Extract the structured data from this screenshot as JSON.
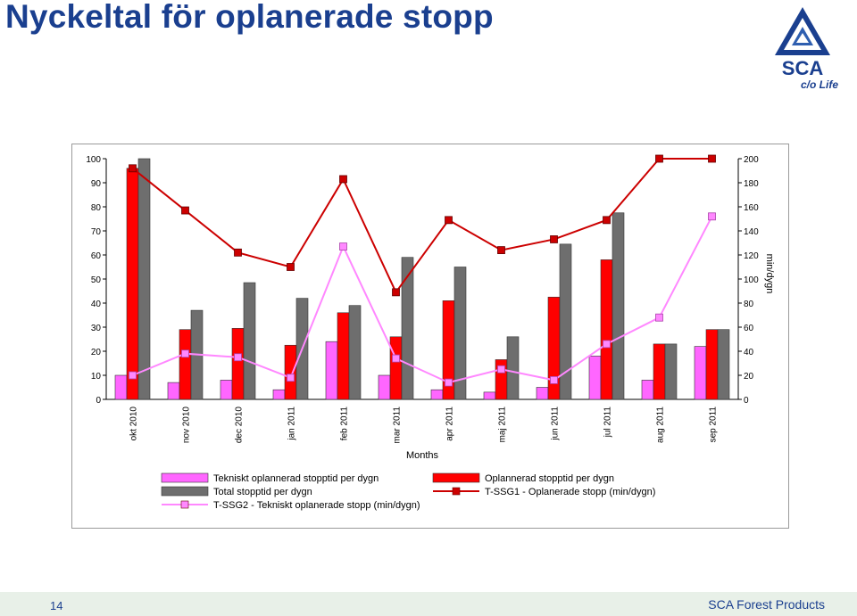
{
  "page": {
    "title": "Nyckeltal för oplanerade stopp",
    "logo_text": "SCA",
    "logo_sub": "c/o Life",
    "page_number": "14",
    "footer": "SCA Forest Products"
  },
  "chart_data": {
    "type": "bar",
    "xlabel": "Months",
    "y2label": "min/dygn",
    "ylim": [
      0,
      100
    ],
    "y2lim": [
      0,
      200
    ],
    "yticks": [
      0,
      10,
      20,
      30,
      40,
      50,
      60,
      70,
      80,
      90,
      100
    ],
    "y2ticks": [
      0,
      20,
      40,
      60,
      80,
      100,
      120,
      140,
      160,
      180,
      200
    ],
    "categories": [
      "okt 2010",
      "nov 2010",
      "dec 2010",
      "jan 2011",
      "feb 2011",
      "mar 2011",
      "apr 2011",
      "maj 2011",
      "jun 2011",
      "jul 2011",
      "aug 2011",
      "sep 2011"
    ],
    "grid": false,
    "legend_position": "bottom",
    "series": [
      {
        "name": "Tekniskt oplannerad stopptid per dygn",
        "type": "bar",
        "axis": "left",
        "color": "#ff66ff",
        "values": [
          10,
          7,
          8,
          4,
          24,
          10,
          4,
          3,
          5,
          18,
          8,
          22
        ]
      },
      {
        "name": "Oplannerad stopptid per dygn",
        "type": "bar",
        "axis": "left",
        "color": "#ff0000",
        "values": [
          96,
          29,
          29.5,
          22.5,
          36,
          26,
          41,
          16.5,
          42.5,
          58,
          23,
          29
        ]
      },
      {
        "name": "Total stopptid per dygn",
        "type": "bar",
        "axis": "left",
        "color": "#6e6e6e",
        "values": [
          100,
          37,
          48.5,
          42,
          39,
          59,
          55,
          26,
          64.5,
          77.5,
          23,
          29
        ]
      },
      {
        "name": "T-SSG1 - Oplanerade stopp (min/dygn)",
        "type": "line",
        "axis": "right",
        "color": "#cc0000",
        "values": [
          192,
          157,
          122,
          110,
          183,
          89,
          149,
          124,
          133,
          149,
          200,
          200
        ]
      },
      {
        "name": "T-SSG2 - Tekniskt oplanerade stopp (min/dygn)",
        "type": "line",
        "axis": "right",
        "color": "#ff88ff",
        "values": [
          20,
          38,
          35,
          18,
          127,
          34,
          14,
          25,
          16,
          46,
          68,
          152
        ]
      }
    ]
  },
  "colors": {
    "title": "#1a3f8f",
    "footer_bg": "#e8f0e8"
  }
}
